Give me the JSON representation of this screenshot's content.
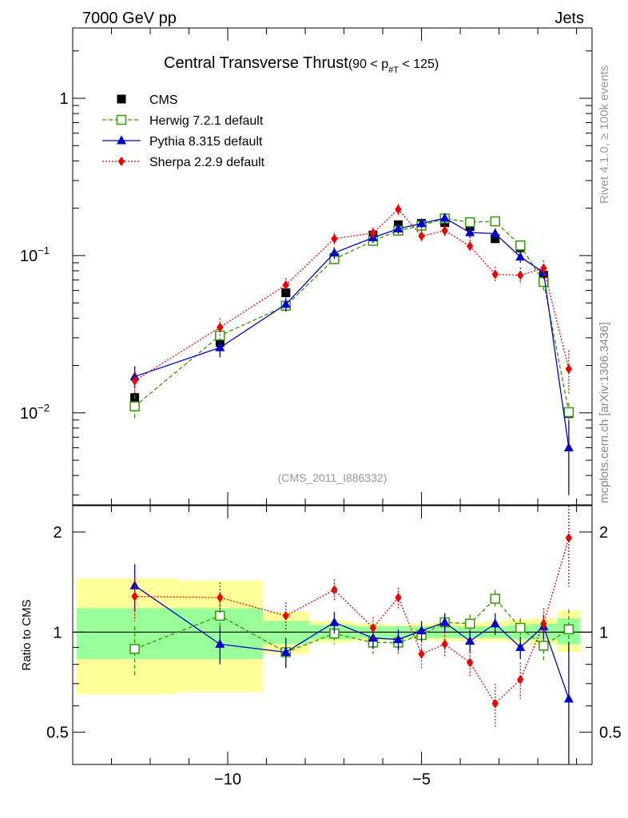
{
  "header": {
    "left": "7000 GeV pp",
    "right": "Jets"
  },
  "side_labels": {
    "rivet": "Rivet 4.1.0, ≥ 100k events",
    "source": "mcplots.cern.ch [arXiv:1306.3436]"
  },
  "chart_data": [
    {
      "type": "line",
      "title": "Central Transverse Thrust",
      "title_suffix": "(90 < p",
      "title_sub": "#T",
      "title_tail": " < 125)",
      "analysis_tag": "(CMS_2011_I886332)",
      "yscale": "log",
      "xlim": [
        -14.0,
        -0.6
      ],
      "ylim": [
        0.0026,
        2.8
      ],
      "x_ticks": [
        -10,
        -5
      ],
      "y_tick_labels": [
        "10^-2",
        "10^-1",
        "1"
      ],
      "legend_position": "top-left",
      "x": [
        -12.4,
        -10.2,
        -8.5,
        -7.25,
        -6.25,
        -5.6,
        -5.0,
        -4.4,
        -3.75,
        -3.1,
        -2.45,
        -1.85,
        -1.2
      ],
      "series": [
        {
          "name": "CMS",
          "color": "#000000",
          "marker": "square",
          "values": [
            0.0125,
            0.028,
            0.058,
            0.097,
            0.135,
            0.157,
            0.16,
            0.162,
            0.153,
            0.128,
            0.112,
            0.075,
            0.0099
          ],
          "errors": [
            0.001,
            0.002,
            0.003,
            0.004,
            0.004,
            0.004,
            0.004,
            0.004,
            0.004,
            0.004,
            0.004,
            0.003,
            0.0006
          ]
        },
        {
          "name": "Herwig 7.2.1 default",
          "color": "#339900",
          "marker": "open-square",
          "dash": "dashed",
          "values": [
            0.011,
            0.031,
            0.048,
            0.095,
            0.124,
            0.144,
            0.155,
            0.172,
            0.163,
            0.165,
            0.116,
            0.068,
            0.0101
          ],
          "errors": [
            0.002,
            0.003,
            0.004,
            0.007,
            0.009,
            0.01,
            0.011,
            0.012,
            0.011,
            0.012,
            0.009,
            0.008,
            0.0015
          ]
        },
        {
          "name": "Pythia 8.315 default",
          "color": "#0000cc",
          "marker": "triangle",
          "values": [
            0.017,
            0.026,
            0.049,
            0.104,
            0.13,
            0.148,
            0.16,
            0.173,
            0.14,
            0.138,
            0.098,
            0.078,
            0.006
          ],
          "errors": [
            0.0028,
            0.0035,
            0.005,
            0.009,
            0.01,
            0.011,
            0.012,
            0.013,
            0.011,
            0.011,
            0.008,
            0.007,
            0.003
          ]
        },
        {
          "name": "Sherpa 2.2.9 default",
          "color": "#ee0000",
          "marker": "diamond",
          "dash": "dotted",
          "values": [
            0.016,
            0.035,
            0.065,
            0.128,
            0.139,
            0.197,
            0.133,
            0.144,
            0.115,
            0.076,
            0.075,
            0.083,
            0.019
          ],
          "errors": [
            0.0025,
            0.005,
            0.007,
            0.011,
            0.012,
            0.016,
            0.012,
            0.013,
            0.011,
            0.009,
            0.009,
            0.01,
            0.006
          ]
        }
      ]
    },
    {
      "type": "line",
      "ylabel": "Ratio to CMS",
      "yscale": "log",
      "ylim": [
        0.4,
        2.4
      ],
      "y_ticks": [
        0.5,
        1,
        2
      ],
      "xlim": [
        -14.0,
        -0.6
      ],
      "x_ticks": [
        -10,
        -5
      ],
      "x_tick_labels": [
        "−10",
        "−5"
      ],
      "reference_line": 1,
      "bands": [
        {
          "x0": -13.9,
          "x1": -11.3,
          "stat_lo": 0.83,
          "stat_hi": 1.18,
          "tot_lo": 0.65,
          "tot_hi": 1.45
        },
        {
          "x0": -11.3,
          "x1": -9.1,
          "stat_lo": 0.83,
          "stat_hi": 1.18,
          "tot_lo": 0.66,
          "tot_hi": 1.43
        },
        {
          "x0": -9.1,
          "x1": -7.9,
          "stat_lo": 0.92,
          "stat_hi": 1.08,
          "tot_lo": 0.86,
          "tot_hi": 1.15
        },
        {
          "x0": -7.9,
          "x1": -6.75,
          "stat_lo": 0.95,
          "stat_hi": 1.05,
          "tot_lo": 0.93,
          "tot_hi": 1.08
        },
        {
          "x0": -6.75,
          "x1": -5.9,
          "stat_lo": 0.96,
          "stat_hi": 1.04,
          "tot_lo": 0.94,
          "tot_hi": 1.06
        },
        {
          "x0": -5.9,
          "x1": -5.3,
          "stat_lo": 0.96,
          "stat_hi": 1.04,
          "tot_lo": 0.95,
          "tot_hi": 1.05
        },
        {
          "x0": -5.3,
          "x1": -4.7,
          "stat_lo": 0.96,
          "stat_hi": 1.04,
          "tot_lo": 0.95,
          "tot_hi": 1.06
        },
        {
          "x0": -4.7,
          "x1": -4.1,
          "stat_lo": 0.96,
          "stat_hi": 1.04,
          "tot_lo": 0.94,
          "tot_hi": 1.07
        },
        {
          "x0": -4.1,
          "x1": -3.4,
          "stat_lo": 0.96,
          "stat_hi": 1.04,
          "tot_lo": 0.94,
          "tot_hi": 1.07
        },
        {
          "x0": -3.4,
          "x1": -2.8,
          "stat_lo": 0.96,
          "stat_hi": 1.04,
          "tot_lo": 0.94,
          "tot_hi": 1.08
        },
        {
          "x0": -2.8,
          "x1": -2.2,
          "stat_lo": 0.95,
          "stat_hi": 1.05,
          "tot_lo": 0.93,
          "tot_hi": 1.09
        },
        {
          "x0": -2.2,
          "x1": -1.5,
          "stat_lo": 0.95,
          "stat_hi": 1.06,
          "tot_lo": 0.92,
          "tot_hi": 1.1
        },
        {
          "x0": -1.5,
          "x1": -0.9,
          "stat_lo": 0.92,
          "stat_hi": 1.1,
          "tot_lo": 0.87,
          "tot_hi": 1.16
        }
      ],
      "series": [
        {
          "name": "Herwig 7.2.1 default",
          "color": "#339900",
          "marker": "open-square",
          "dash": "dashed",
          "values": [
            0.89,
            1.12,
            0.87,
            0.99,
            0.93,
            0.93,
            0.98,
            1.07,
            1.06,
            1.26,
            1.03,
            0.91,
            1.02
          ],
          "errors": [
            0.15,
            0.1,
            0.09,
            0.07,
            0.07,
            0.07,
            0.07,
            0.07,
            0.07,
            0.08,
            0.07,
            0.1,
            0.15
          ]
        },
        {
          "name": "Pythia 8.315 default",
          "color": "#0000cc",
          "marker": "triangle",
          "values": [
            1.38,
            0.92,
            0.87,
            1.07,
            0.96,
            0.95,
            1.01,
            1.07,
            0.94,
            1.06,
            0.9,
            1.04,
            0.63
          ],
          "errors": [
            0.22,
            0.12,
            0.09,
            0.08,
            0.07,
            0.07,
            0.07,
            0.07,
            0.07,
            0.08,
            0.07,
            0.09,
            0.3
          ]
        },
        {
          "name": "Sherpa 2.2.9 default",
          "color": "#ee0000",
          "marker": "diamond",
          "dash": "dotted",
          "values": [
            1.28,
            1.27,
            1.12,
            1.34,
            1.03,
            1.27,
            0.86,
            0.92,
            0.81,
            0.61,
            0.72,
            1.06,
            1.92
          ],
          "errors": [
            0.2,
            0.14,
            0.11,
            0.1,
            0.08,
            0.09,
            0.08,
            0.08,
            0.08,
            0.09,
            0.09,
            0.12,
            0.55
          ]
        }
      ]
    }
  ]
}
